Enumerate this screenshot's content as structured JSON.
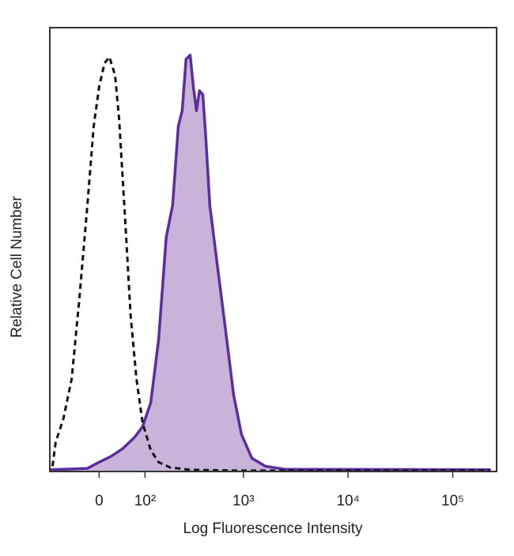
{
  "chart_data": {
    "type": "histogram-overlay",
    "xlabel": "Log Fluorescence Intensity",
    "ylabel": "Relative Cell Number",
    "xscale": "arcsinh",
    "xlim": [
      -110,
      262144
    ],
    "ylim": [
      0,
      100
    ],
    "xticks": [
      0,
      {
        "value": 100,
        "label": "10²"
      },
      {
        "value": 1000,
        "label": "10³"
      },
      {
        "value": 10000,
        "label": "10⁴"
      },
      {
        "value": 100000,
        "label": "10⁵"
      }
    ],
    "series": [
      {
        "color": "#5b2d9e",
        "fill": "#c9b3d9",
        "dashed": false,
        "x": [
          -109,
          -22,
          0,
          22,
          46,
          73,
          93,
          117,
          144,
          174,
          203,
          232,
          254,
          278,
          305,
          328,
          352,
          377,
          406,
          435,
          475,
          567,
          677,
          806,
          958,
          1205,
          1620,
          2500,
          230000
        ],
        "values": [
          0.4,
          0.7,
          2.1,
          3.4,
          5.2,
          7.8,
          10.1,
          15.5,
          29.7,
          52.8,
          60,
          77.8,
          81.3,
          92.9,
          93.8,
          86.7,
          81.3,
          85.8,
          84.9,
          75.1,
          60,
          45.7,
          31.5,
          17.3,
          8.4,
          3,
          1.2,
          0.5,
          0.4
        ]
      },
      {
        "color": "#111111",
        "fill": null,
        "dashed": true,
        "x": [
          -102,
          -93,
          -73,
          -54,
          -38,
          -22,
          -10,
          0,
          10,
          19,
          30,
          38,
          51,
          63,
          77,
          93,
          117,
          144,
          191,
          305,
          875,
          230000
        ],
        "values": [
          1.2,
          6.6,
          11.9,
          20.8,
          38.6,
          60,
          77.8,
          86.7,
          92,
          93.4,
          89.3,
          79.5,
          56.4,
          35.1,
          20.8,
          11,
          4.8,
          2.1,
          0.9,
          0.4,
          0.2,
          0.2
        ]
      }
    ]
  }
}
